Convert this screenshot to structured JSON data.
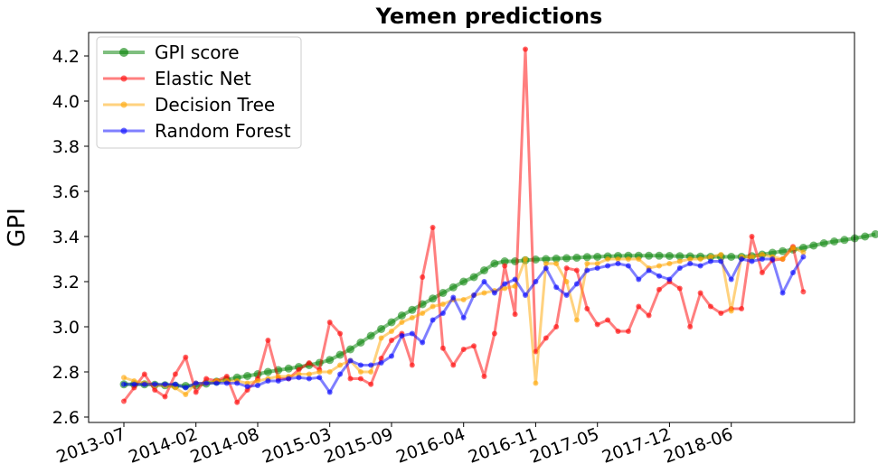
{
  "chart_data": {
    "type": "line",
    "title": "Yemen predictions",
    "xlabel": "",
    "ylabel": "GPI",
    "ylim": [
      2.6,
      4.3
    ],
    "yticks": [
      "2.6",
      "2.8",
      "3.0",
      "3.2",
      "3.4",
      "3.6",
      "3.8",
      "4.0",
      "4.2"
    ],
    "xtick_labels": [
      "2013-07",
      "2014-02",
      "2014-08",
      "2015-03",
      "2015-09",
      "2016-04",
      "2016-11",
      "2017-05",
      "2017-12",
      "2018-06"
    ],
    "xtick_index": [
      0,
      7,
      13,
      20,
      26,
      33,
      40,
      46,
      53,
      59
    ],
    "grid": false,
    "legend_position": "top-left",
    "series": [
      {
        "name": "GPI score",
        "color": "#008000",
        "values": [
          2.745,
          2.745,
          2.745,
          2.743,
          2.741,
          2.739,
          2.738,
          2.74,
          2.748,
          2.757,
          2.765,
          2.775,
          2.782,
          2.79,
          2.8,
          2.808,
          2.815,
          2.822,
          2.83,
          2.84,
          2.853,
          2.876,
          2.9,
          2.93,
          2.96,
          2.99,
          3.02,
          3.05,
          3.075,
          3.1,
          3.125,
          3.15,
          3.175,
          3.2,
          3.22,
          3.25,
          3.28,
          3.29,
          3.29,
          3.295,
          3.298,
          3.3,
          3.302,
          3.304,
          3.306,
          3.309,
          3.31,
          3.312,
          3.314,
          3.315,
          3.315,
          3.315,
          3.315,
          3.314,
          3.313,
          3.312,
          3.311,
          3.31,
          3.31,
          3.31,
          3.31,
          3.313,
          3.32,
          3.328,
          3.335,
          3.342,
          3.35,
          3.36,
          3.37,
          3.378,
          3.385,
          3.392,
          3.4,
          3.41
        ]
      },
      {
        "name": "Elastic Net",
        "color": "#ff0000",
        "values": [
          2.67,
          2.73,
          2.79,
          2.72,
          2.69,
          2.79,
          2.865,
          2.71,
          2.77,
          2.76,
          2.78,
          2.665,
          2.72,
          2.77,
          2.94,
          2.77,
          2.77,
          2.81,
          2.84,
          2.81,
          3.02,
          2.97,
          2.77,
          2.77,
          2.745,
          2.86,
          2.94,
          2.97,
          2.83,
          3.22,
          3.44,
          2.905,
          2.83,
          2.9,
          2.915,
          2.78,
          2.97,
          3.27,
          3.055,
          4.23,
          2.89,
          2.95,
          3.0,
          3.26,
          3.25,
          3.08,
          3.01,
          3.03,
          2.98,
          2.98,
          3.09,
          3.05,
          3.165,
          3.2,
          3.17,
          3.0,
          3.15,
          3.09,
          3.06,
          3.08,
          3.08,
          3.4,
          3.24,
          3.295,
          3.3,
          3.355,
          3.155
        ]
      },
      {
        "name": "Decision Tree",
        "color": "#ffa500",
        "values": [
          2.775,
          2.76,
          2.75,
          2.74,
          2.74,
          2.73,
          2.7,
          2.75,
          2.75,
          2.76,
          2.76,
          2.76,
          2.75,
          2.76,
          2.77,
          2.78,
          2.78,
          2.79,
          2.79,
          2.8,
          2.8,
          2.83,
          2.85,
          2.8,
          2.8,
          2.95,
          2.98,
          3.02,
          3.04,
          3.06,
          3.09,
          3.1,
          3.12,
          3.12,
          3.14,
          3.15,
          3.16,
          3.17,
          3.18,
          3.3,
          2.75,
          3.28,
          3.28,
          3.2,
          3.03,
          3.28,
          3.28,
          3.3,
          3.3,
          3.3,
          3.3,
          3.26,
          3.27,
          3.28,
          3.29,
          3.3,
          3.3,
          3.31,
          3.32,
          3.07,
          3.31,
          3.31,
          3.32,
          3.31,
          3.3,
          3.35,
          3.33
        ]
      },
      {
        "name": "Random Forest",
        "color": "#0000ff",
        "values": [
          2.745,
          2.745,
          2.745,
          2.745,
          2.745,
          2.745,
          2.73,
          2.75,
          2.75,
          2.75,
          2.75,
          2.75,
          2.735,
          2.74,
          2.76,
          2.76,
          2.77,
          2.775,
          2.77,
          2.775,
          2.71,
          2.79,
          2.85,
          2.83,
          2.83,
          2.84,
          2.87,
          2.96,
          2.97,
          2.93,
          3.03,
          3.06,
          3.13,
          3.04,
          3.14,
          3.2,
          3.15,
          3.19,
          3.21,
          3.14,
          3.2,
          3.26,
          3.175,
          3.14,
          3.19,
          3.25,
          3.26,
          3.27,
          3.28,
          3.27,
          3.21,
          3.25,
          3.225,
          3.21,
          3.26,
          3.28,
          3.27,
          3.29,
          3.29,
          3.21,
          3.3,
          3.29,
          3.3,
          3.3,
          3.15,
          3.24,
          3.31
        ]
      }
    ]
  }
}
